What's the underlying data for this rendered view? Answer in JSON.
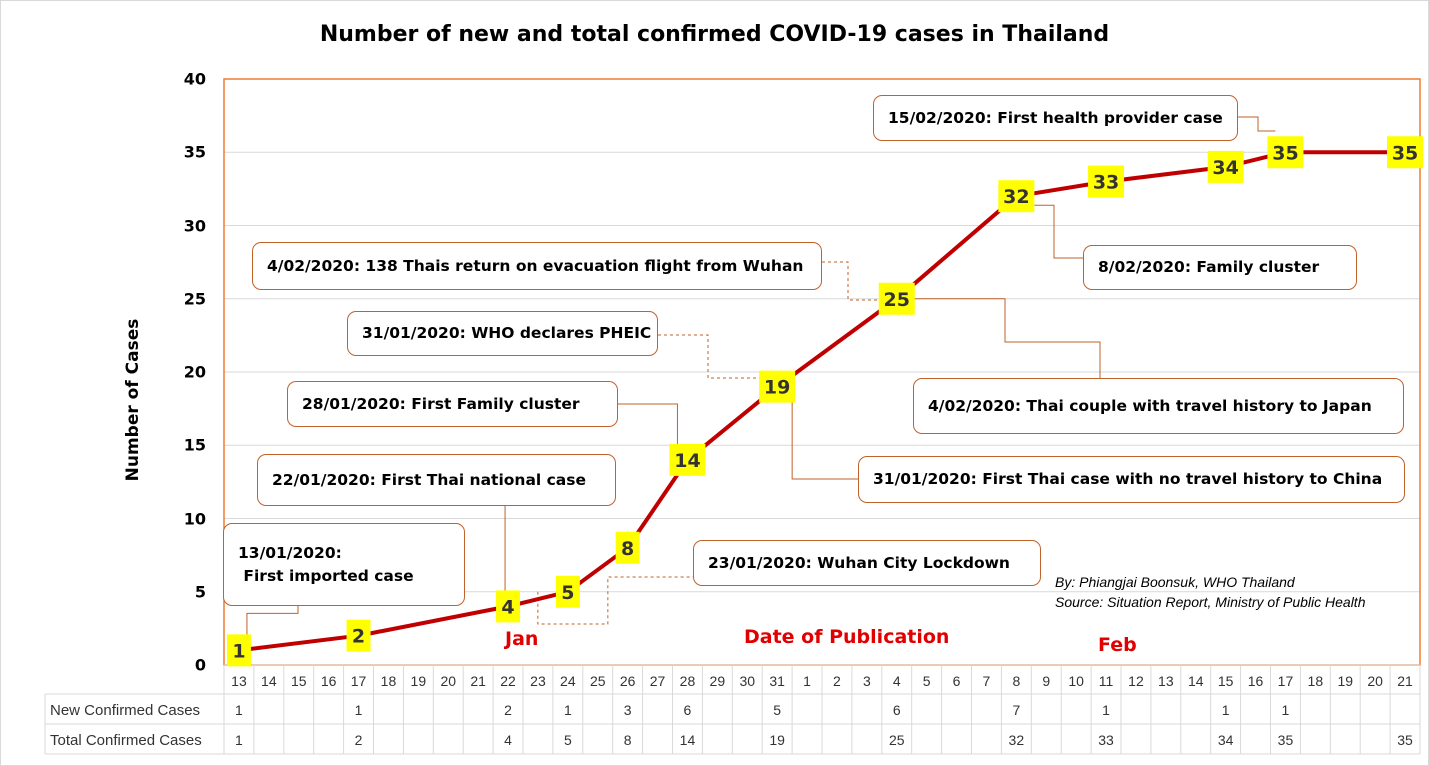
{
  "chart_data": {
    "type": "line",
    "title": "Number of new and total confirmed COVID-19 cases in Thailand",
    "ylabel": "Number of Cases",
    "xlabel": "Date of Publication",
    "ylim": [
      0,
      40
    ],
    "yticks": [
      0,
      5,
      10,
      15,
      20,
      25,
      30,
      35,
      40
    ],
    "grid": true,
    "x": [
      "13",
      "14",
      "15",
      "16",
      "17",
      "18",
      "19",
      "20",
      "21",
      "22",
      "23",
      "24",
      "25",
      "26",
      "27",
      "28",
      "29",
      "30",
      "31",
      "1",
      "2",
      "3",
      "4",
      "5",
      "6",
      "7",
      "8",
      "9",
      "10",
      "11",
      "12",
      "13",
      "14",
      "15",
      "16",
      "17",
      "18",
      "19",
      "20",
      "21"
    ],
    "months": [
      {
        "label": "Jan",
        "at_index": 9
      },
      {
        "label": "Feb",
        "at_index": 29
      }
    ],
    "series": [
      {
        "name": "Total Confirmed Cases",
        "color": "#c00000",
        "points": [
          {
            "i": 0,
            "y": 1
          },
          {
            "i": 4,
            "y": 2
          },
          {
            "i": 9,
            "y": 4
          },
          {
            "i": 11,
            "y": 5
          },
          {
            "i": 13,
            "y": 8
          },
          {
            "i": 15,
            "y": 14
          },
          {
            "i": 18,
            "y": 19
          },
          {
            "i": 22,
            "y": 25
          },
          {
            "i": 26,
            "y": 32
          },
          {
            "i": 29,
            "y": 33
          },
          {
            "i": 33,
            "y": 34
          },
          {
            "i": 35,
            "y": 35
          },
          {
            "i": 39,
            "y": 35
          }
        ]
      }
    ],
    "data_label_color": "#ffff00",
    "table": {
      "rows": [
        {
          "label": "New Confirmed Cases",
          "cells": {
            "0": "1",
            "4": "1",
            "9": "2",
            "11": "1",
            "13": "3",
            "15": "6",
            "18": "5",
            "22": "6",
            "26": "7",
            "29": "1",
            "33": "1",
            "35": "1"
          }
        },
        {
          "label": "Total Confirmed Cases",
          "cells": {
            "0": "1",
            "4": "2",
            "9": "4",
            "11": "5",
            "13": "8",
            "15": "14",
            "18": "19",
            "22": "25",
            "26": "32",
            "29": "33",
            "33": "34",
            "35": "35",
            "39": "35"
          }
        }
      ]
    },
    "annotations": [
      {
        "id": "a13jan",
        "lines": [
          "13/01/2020:",
          " First imported case"
        ],
        "target_i": 0
      },
      {
        "id": "a22jan",
        "lines": [
          "22/01/2020: First Thai national case"
        ],
        "target_i": 9
      },
      {
        "id": "a23jan",
        "lines": [
          "23/01/2020: Wuhan City Lockdown"
        ],
        "target_i": 11
      },
      {
        "id": "a28jan",
        "lines": [
          "28/01/2020: First Family cluster"
        ],
        "target_i": 15
      },
      {
        "id": "a31jan-who",
        "lines": [
          "31/01/2020: WHO declares PHEIC"
        ],
        "target_i": 18
      },
      {
        "id": "a31jan-notravel",
        "lines": [
          "31/01/2020: First Thai case with no travel history to China"
        ],
        "target_i": 18
      },
      {
        "id": "a04feb-evac",
        "lines": [
          "4/02/2020: 138 Thais return on evacuation flight from Wuhan"
        ],
        "target_i": 22
      },
      {
        "id": "a04feb-japan",
        "lines": [
          "4/02/2020: Thai couple with travel history to Japan"
        ],
        "target_i": 22
      },
      {
        "id": "a08feb",
        "lines": [
          "8/02/2020: Family cluster"
        ],
        "target_i": 26
      },
      {
        "id": "a15feb",
        "lines": [
          "15/02/2020: First health provider case"
        ],
        "target_i": 35
      }
    ],
    "credit": [
      "By: Phiangjai Boonsuk, WHO Thailand",
      "Source: Situation Report, Ministry of Public Health"
    ]
  },
  "colors": {
    "line": "#c00000",
    "plot_border": "#ed7d31",
    "callout_border": "#c0622a",
    "grid": "#d9d9d9",
    "month_text": "#e00000"
  }
}
